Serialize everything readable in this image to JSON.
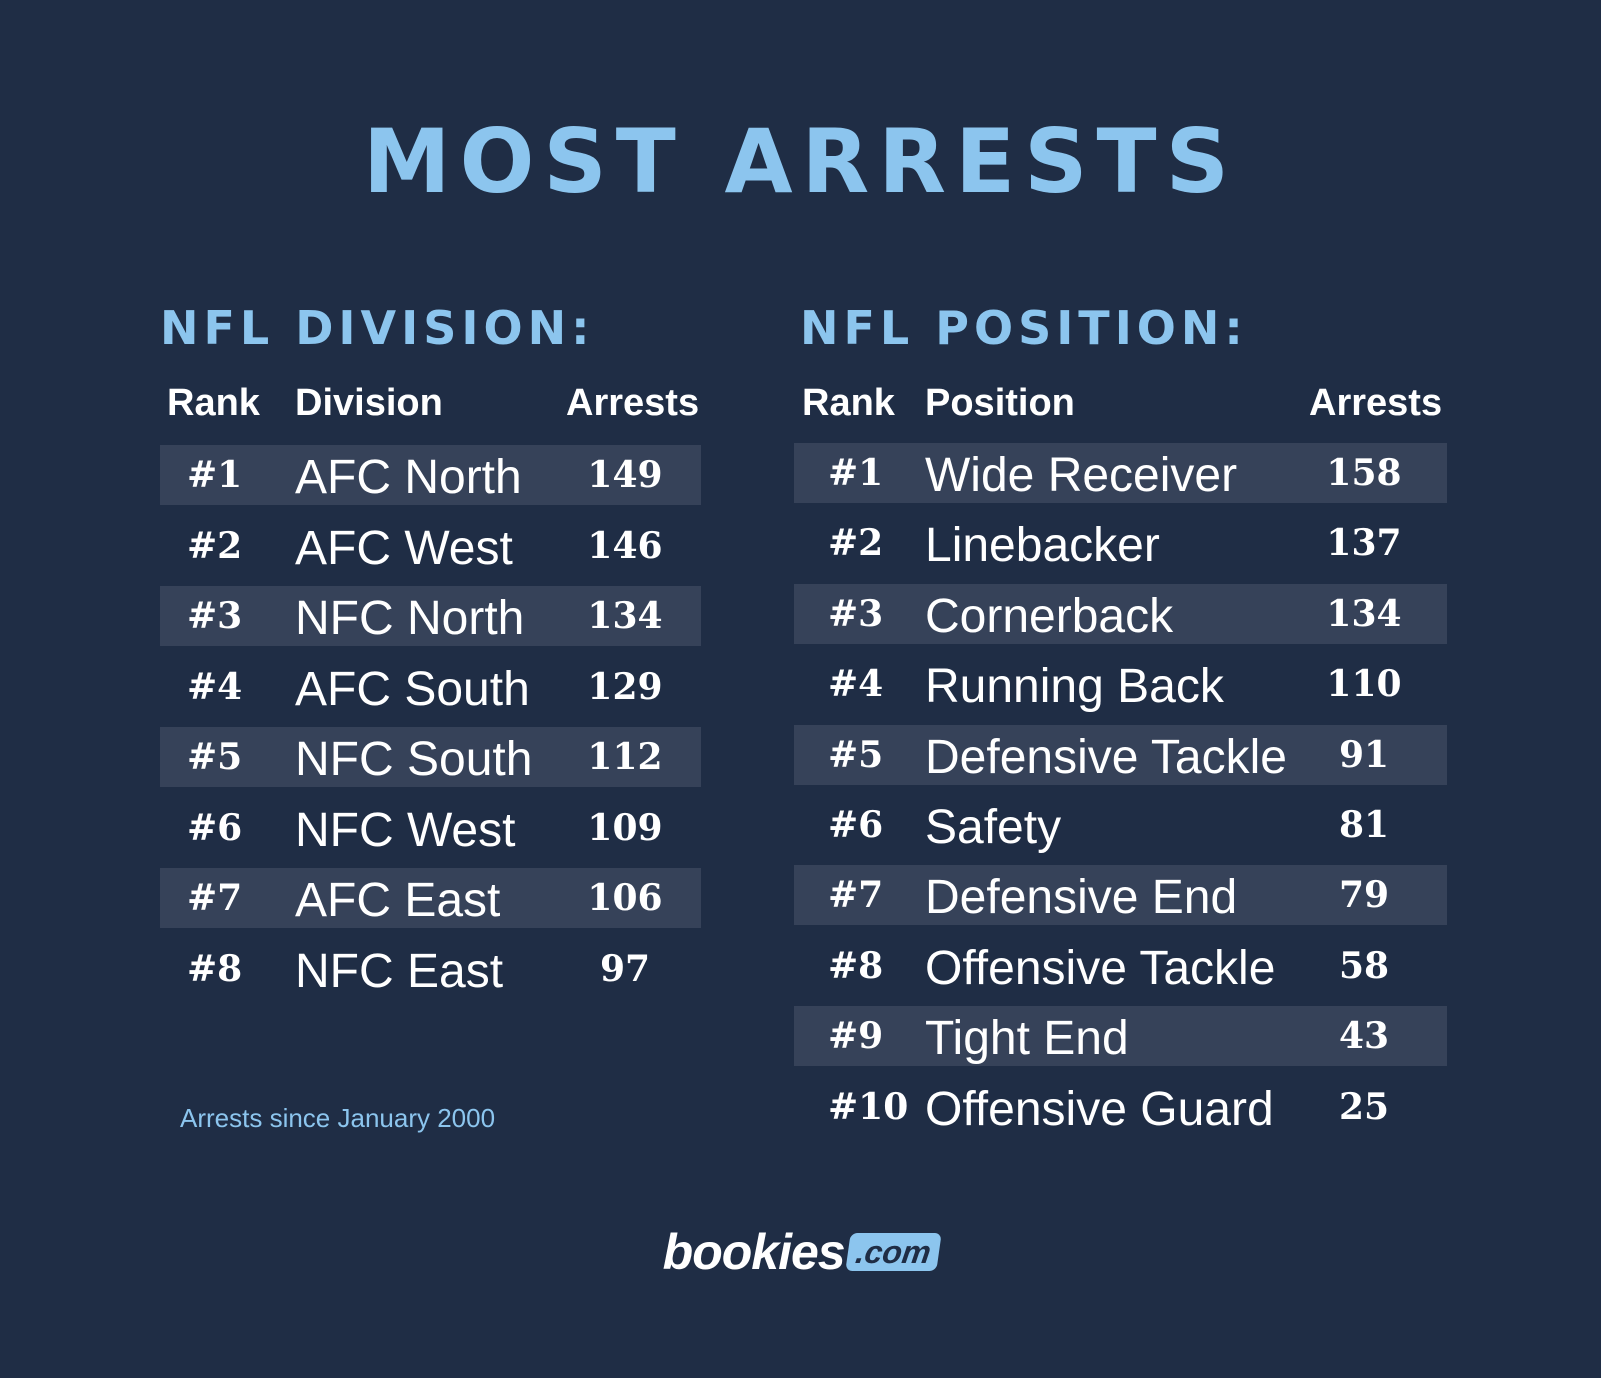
{
  "title": "MOST ARRESTS",
  "division": {
    "heading": "NFL DIVISION:",
    "col_rank": "Rank",
    "col_name": "Division",
    "col_value": "Arrests",
    "rows": [
      {
        "rank": "#1",
        "name": "AFC North",
        "value": "149"
      },
      {
        "rank": "#2",
        "name": "AFC West",
        "value": "146"
      },
      {
        "rank": "#3",
        "name": "NFC North",
        "value": "134"
      },
      {
        "rank": "#4",
        "name": "AFC South",
        "value": "129"
      },
      {
        "rank": "#5",
        "name": "NFC South",
        "value": "112"
      },
      {
        "rank": "#6",
        "name": "NFC West",
        "value": "109"
      },
      {
        "rank": "#7",
        "name": "AFC East",
        "value": "106"
      },
      {
        "rank": "#8",
        "name": "NFC East",
        "value": "97"
      }
    ]
  },
  "position": {
    "heading": "NFL POSITION:",
    "col_rank": "Rank",
    "col_name": "Position",
    "col_value": "Arrests",
    "rows": [
      {
        "rank": "#1",
        "name": "Wide Receiver",
        "value": "158"
      },
      {
        "rank": "#2",
        "name": "Linebacker",
        "value": "137"
      },
      {
        "rank": "#3",
        "name": "Cornerback",
        "value": "134"
      },
      {
        "rank": "#4",
        "name": "Running Back",
        "value": "110"
      },
      {
        "rank": "#5",
        "name": "Defensive Tackle",
        "value": "91"
      },
      {
        "rank": "#6",
        "name": "Safety",
        "value": "81"
      },
      {
        "rank": "#7",
        "name": "Defensive End",
        "value": "79"
      },
      {
        "rank": "#8",
        "name": "Offensive Tackle",
        "value": "58"
      },
      {
        "rank": "#9",
        "name": "Tight End",
        "value": "43"
      },
      {
        "rank": "#10",
        "name": "Offensive Guard",
        "value": "25"
      }
    ]
  },
  "footnote": "Arrests since January 2000",
  "logo": {
    "word": "bookies",
    "badge": ".com"
  },
  "colors": {
    "background": "#1f2d45",
    "accent": "#8cc5ee",
    "row_stripe": "#364259",
    "text": "#ffffff"
  },
  "chart_data": [
    {
      "type": "table",
      "title": "NFL DIVISION:",
      "columns": [
        "Rank",
        "Division",
        "Arrests"
      ],
      "categories": [
        "AFC North",
        "AFC West",
        "NFC North",
        "AFC South",
        "NFC South",
        "NFC West",
        "AFC East",
        "NFC East"
      ],
      "values": [
        149,
        146,
        134,
        129,
        112,
        109,
        106,
        97
      ]
    },
    {
      "type": "table",
      "title": "NFL POSITION:",
      "columns": [
        "Rank",
        "Position",
        "Arrests"
      ],
      "categories": [
        "Wide Receiver",
        "Linebacker",
        "Cornerback",
        "Running Back",
        "Defensive Tackle",
        "Safety",
        "Defensive End",
        "Offensive Tackle",
        "Tight End",
        "Offensive Guard"
      ],
      "values": [
        158,
        137,
        134,
        110,
        91,
        81,
        79,
        58,
        43,
        25
      ]
    }
  ]
}
